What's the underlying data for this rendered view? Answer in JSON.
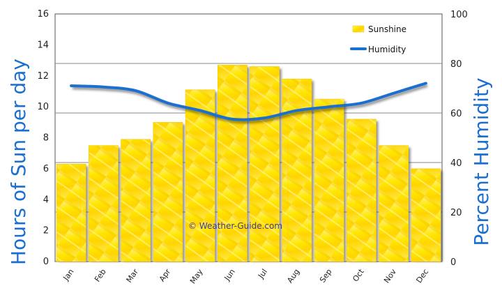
{
  "chart_data": {
    "type": "bar",
    "categories": [
      "Jan",
      "Feb",
      "Mar",
      "Apr",
      "May",
      "Jun",
      "Jul",
      "Aug",
      "Sep",
      "Oct",
      "Nov",
      "Dec"
    ],
    "series": [
      {
        "name": "Sunshine",
        "type": "bar",
        "axis": "left",
        "values": [
          6.3,
          7.5,
          7.9,
          9.0,
          11.1,
          12.7,
          12.6,
          11.8,
          10.5,
          9.2,
          7.5,
          6.0
        ]
      },
      {
        "name": "Humidity",
        "type": "line",
        "axis": "right",
        "values": [
          71,
          70.5,
          69,
          64,
          61,
          57.5,
          58,
          61,
          62.5,
          64,
          68,
          72
        ]
      }
    ],
    "ylabel": "Hours of Sun per day",
    "y2label": "Percent Humidity",
    "ylim": [
      0,
      16
    ],
    "y2lim": [
      0,
      100
    ],
    "yticks": [
      "0",
      "2",
      "4",
      "6",
      "8",
      "10",
      "12",
      "14",
      "16"
    ],
    "y2ticks": [
      "0",
      "20",
      "40",
      "60",
      "80",
      "100"
    ],
    "legend_position": "top-right",
    "credit": "© Weather-Guide.com",
    "grid": true
  },
  "colors": {
    "bar": "#ffe600",
    "bar_edge": "#ffd000",
    "line": "#1a6fd0",
    "axis_label": "#1a6fd0"
  }
}
